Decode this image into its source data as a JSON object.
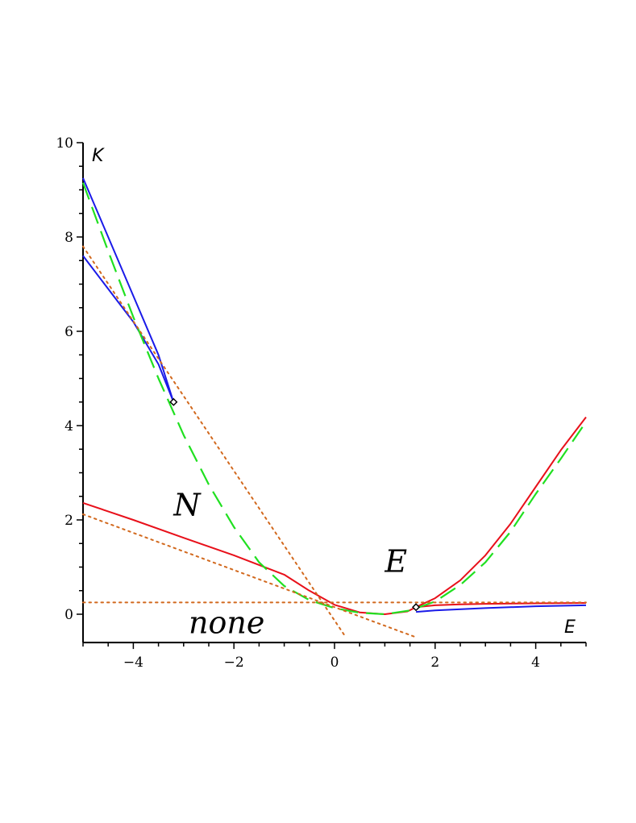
{
  "chart_data": {
    "type": "line",
    "title": "",
    "xlabel": "E",
    "ylabel": "K",
    "xlim": [
      -5,
      5
    ],
    "ylim": [
      -0.6,
      10
    ],
    "x_ticks": [
      -4,
      -2,
      0,
      2,
      4
    ],
    "x_tick_labels": [
      "−4",
      "−2",
      "0",
      "2",
      "4"
    ],
    "y_ticks": [
      0,
      2,
      4,
      6,
      8,
      10
    ],
    "y_tick_labels": [
      "0",
      "2",
      "4",
      "6",
      "8",
      "10"
    ],
    "grid": false,
    "region_labels": [
      {
        "text": "N",
        "x": -3.2,
        "y": 2.3
      },
      {
        "text": "E",
        "x": 1.0,
        "y": 1.1
      },
      {
        "text": "none",
        "x": -2.9,
        "y": -0.2
      }
    ],
    "series": [
      {
        "color": "#e8101a",
        "style": "solid",
        "points": [
          [
            -5.0,
            2.36
          ],
          [
            -4.0,
            2.0
          ],
          [
            -3.0,
            1.62
          ],
          [
            -2.0,
            1.25
          ],
          [
            -1.0,
            0.84
          ],
          [
            -0.5,
            0.5
          ],
          [
            0.0,
            0.2
          ],
          [
            0.5,
            0.04
          ],
          [
            1.0,
            0.0
          ],
          [
            1.45,
            0.06
          ],
          [
            1.62,
            0.15
          ]
        ]
      },
      {
        "color": "#e8101a",
        "style": "solid",
        "points": [
          [
            1.62,
            0.15
          ],
          [
            2.0,
            0.19
          ],
          [
            2.5,
            0.21
          ],
          [
            3.0,
            0.22
          ],
          [
            4.0,
            0.23
          ],
          [
            5.0,
            0.24
          ]
        ]
      },
      {
        "color": "#e8101a",
        "style": "solid",
        "points": [
          [
            1.62,
            0.15
          ],
          [
            2.0,
            0.34
          ],
          [
            2.5,
            0.72
          ],
          [
            3.0,
            1.25
          ],
          [
            3.5,
            1.92
          ],
          [
            4.0,
            2.7
          ],
          [
            4.5,
            3.48
          ],
          [
            5.0,
            4.18
          ]
        ]
      },
      {
        "color": "#1a1ae8",
        "style": "solid",
        "points": [
          [
            -5.0,
            9.25
          ],
          [
            -4.5,
            8.0
          ],
          [
            -4.0,
            6.75
          ],
          [
            -3.5,
            5.5
          ],
          [
            -3.2,
            4.5
          ]
        ]
      },
      {
        "color": "#1a1ae8",
        "style": "solid",
        "points": [
          [
            -5.0,
            7.6
          ],
          [
            -4.5,
            6.9
          ],
          [
            -4.0,
            6.2
          ],
          [
            -3.5,
            5.3
          ],
          [
            -3.2,
            4.5
          ]
        ]
      },
      {
        "color": "#1a1ae8",
        "style": "solid",
        "points": [
          [
            1.62,
            0.05
          ],
          [
            2.0,
            0.08
          ],
          [
            3.0,
            0.13
          ],
          [
            4.0,
            0.17
          ],
          [
            5.0,
            0.19
          ]
        ]
      },
      {
        "color": "#20e020",
        "style": "dashed",
        "points": [
          [
            -5.0,
            9.15
          ],
          [
            -4.5,
            7.7
          ],
          [
            -4.0,
            6.3
          ],
          [
            -3.5,
            5.0
          ],
          [
            -3.0,
            3.8
          ],
          [
            -2.5,
            2.75
          ],
          [
            -2.0,
            1.85
          ],
          [
            -1.5,
            1.1
          ],
          [
            -1.0,
            0.6
          ],
          [
            -0.5,
            0.3
          ],
          [
            0.0,
            0.13
          ],
          [
            0.5,
            0.03
          ],
          [
            1.0,
            0.0
          ],
          [
            1.5,
            0.08
          ],
          [
            2.0,
            0.27
          ],
          [
            2.5,
            0.62
          ],
          [
            3.0,
            1.1
          ],
          [
            3.5,
            1.75
          ],
          [
            4.0,
            2.55
          ],
          [
            4.5,
            3.3
          ],
          [
            5.0,
            4.08
          ]
        ]
      },
      {
        "color": "#d2691e",
        "style": "dotted",
        "points": [
          [
            -5.0,
            0.25
          ],
          [
            5.0,
            0.25
          ]
        ]
      },
      {
        "color": "#d2691e",
        "style": "dotted",
        "points": [
          [
            -5.0,
            7.8
          ],
          [
            0.2,
            -0.45
          ]
        ]
      },
      {
        "color": "#d2691e",
        "style": "dotted",
        "points": [
          [
            -5.0,
            2.12
          ],
          [
            1.6,
            -0.48
          ]
        ]
      }
    ],
    "markers": [
      {
        "x": -3.2,
        "y": 4.5
      },
      {
        "x": 1.62,
        "y": 0.15
      }
    ]
  }
}
